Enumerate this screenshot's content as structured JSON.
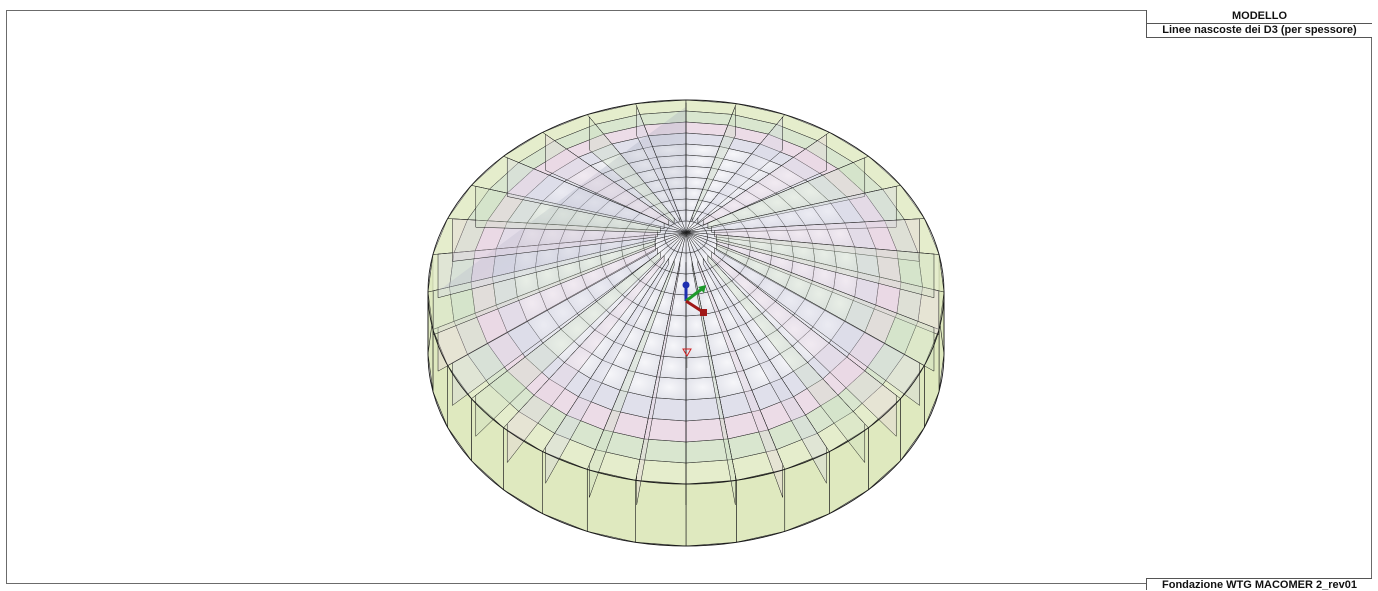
{
  "header": {
    "title": "MODELLO",
    "subtitle": "Linee nascoste dei D3 (per spessore)"
  },
  "footer": {
    "project": "Fondazione WTG MACOMER 2_rev01"
  },
  "model": {
    "type": "foundation-3d-mesh",
    "radial_divisions": 32,
    "ring_count": 12,
    "colors": {
      "outer_face": "#dfe9bf",
      "ring_a": "#e7d3e1",
      "ring_b": "#cfe0c3",
      "ring_c": "#d8d8e6",
      "inner_face": "#ededf2",
      "shadow": "#b7bccb",
      "line": "#1a1a1a",
      "axis_x": "#a01818",
      "axis_y": "#1e9a2a",
      "axis_z": "#1d2fb0",
      "marker": "#d02020"
    }
  }
}
